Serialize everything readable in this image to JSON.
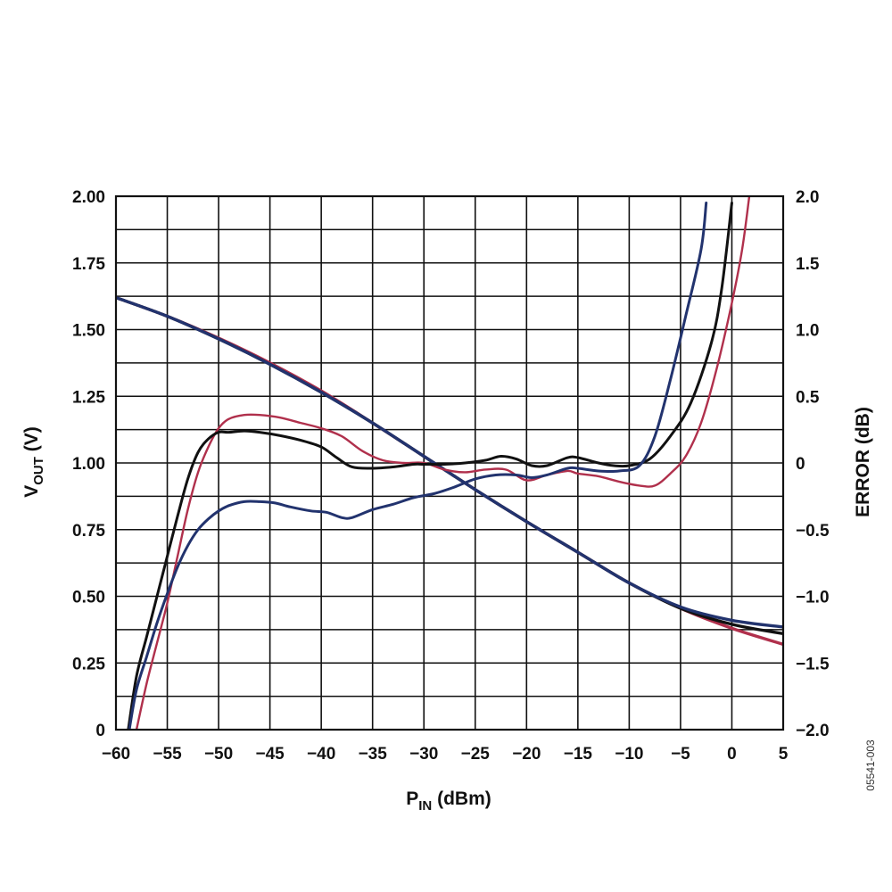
{
  "chart_data": {
    "type": "line",
    "figure_id": "05541-003",
    "xlabel": {
      "main": "P",
      "sub": "IN",
      "unit": " (dBm)"
    },
    "ylabel_left": {
      "main": "V",
      "sub": "OUT",
      "unit": " (V)"
    },
    "ylabel_right": "ERROR (dB)",
    "xlim": [
      -60,
      5
    ],
    "ylim_left": [
      0,
      2.0
    ],
    "ylim_right": [
      -2.0,
      2.0
    ],
    "x_ticks": [
      -60,
      -55,
      -50,
      -45,
      -40,
      -35,
      -30,
      -25,
      -20,
      -15,
      -10,
      -5,
      0,
      5
    ],
    "x_tick_labels": [
      "−60",
      "−55",
      "−50",
      "−45",
      "−40",
      "−35",
      "−30",
      "−25",
      "−20",
      "−15",
      "−10",
      "−5",
      "0",
      "5"
    ],
    "y_left_ticks": [
      0,
      0.25,
      0.5,
      0.75,
      1.0,
      1.25,
      1.5,
      1.75,
      2.0
    ],
    "y_left_tick_labels": [
      "0",
      "0.25",
      "0.50",
      "0.75",
      "1.00",
      "1.25",
      "1.50",
      "1.75",
      "2.00"
    ],
    "y_right_ticks": [
      -2.0,
      -1.5,
      -1.0,
      -0.5,
      0,
      0.5,
      1.0,
      1.5,
      2.0
    ],
    "y_right_tick_labels": [
      "−2.0",
      "−1.5",
      "−1.0",
      "−0.5",
      "0",
      "0.5",
      "1.0",
      "1.5",
      "2.0"
    ],
    "grid": {
      "x_step": 5,
      "y_step_left": 0.125
    },
    "colors": {
      "black": "#111111",
      "red": "#b0304c",
      "blue": "#22336e"
    },
    "series": [
      {
        "axis": "left",
        "color": "black",
        "x": [
          -60,
          -55,
          -50,
          -45,
          -40,
          -35,
          -30,
          -25,
          -20,
          -15,
          -10,
          -5,
          0,
          5
        ],
        "y": [
          1.62,
          1.55,
          1.465,
          1.37,
          1.265,
          1.15,
          1.025,
          0.9,
          0.78,
          0.665,
          0.55,
          0.455,
          0.395,
          0.36
        ]
      },
      {
        "axis": "left",
        "color": "red",
        "x": [
          -60,
          -55,
          -50,
          -45,
          -40,
          -35,
          -30,
          -25,
          -20,
          -15,
          -10,
          -5,
          0,
          5
        ],
        "y": [
          1.62,
          1.55,
          1.468,
          1.375,
          1.27,
          1.15,
          1.025,
          0.9,
          0.78,
          0.665,
          0.55,
          0.455,
          0.38,
          0.32
        ]
      },
      {
        "axis": "left",
        "color": "blue",
        "x": [
          -60,
          -55,
          -50,
          -45,
          -40,
          -35,
          -30,
          -25,
          -20,
          -15,
          -10,
          -5,
          0,
          5
        ],
        "y": [
          1.62,
          1.55,
          1.465,
          1.37,
          1.265,
          1.15,
          1.025,
          0.9,
          0.78,
          0.665,
          0.55,
          0.46,
          0.41,
          0.385
        ]
      },
      {
        "axis": "right",
        "color": "black",
        "x": [
          -58.8,
          -58,
          -57,
          -56,
          -55,
          -54,
          -53,
          -52,
          -51,
          -50,
          -49,
          -47.5,
          -46,
          -44,
          -42,
          -40,
          -38.5,
          -37,
          -35,
          -33,
          -31,
          -30,
          -28,
          -26,
          -24,
          -22.5,
          -21,
          -19.5,
          -18,
          -16,
          -15,
          -13,
          -11.5,
          -10,
          -8,
          -6,
          -4,
          -2,
          -1,
          0
        ],
        "y": [
          -2.0,
          -1.6,
          -1.3,
          -1.0,
          -0.7,
          -0.4,
          -0.12,
          0.08,
          0.18,
          0.23,
          0.23,
          0.24,
          0.23,
          0.205,
          0.17,
          0.12,
          0.04,
          -0.03,
          -0.04,
          -0.03,
          -0.01,
          -0.01,
          -0.01,
          0.0,
          0.02,
          0.05,
          0.03,
          -0.02,
          -0.02,
          0.04,
          0.04,
          0.0,
          -0.02,
          -0.02,
          0.03,
          0.2,
          0.45,
          0.9,
          1.3,
          1.95
        ]
      },
      {
        "axis": "right",
        "color": "red",
        "x": [
          -58,
          -57,
          -56,
          -55,
          -54,
          -53,
          -52,
          -51,
          -50,
          -49,
          -47.5,
          -46,
          -44,
          -42,
          -40,
          -38,
          -36,
          -34,
          -32,
          -30,
          -28,
          -26,
          -24,
          -22,
          -20,
          -18,
          -16,
          -15,
          -13,
          -11,
          -9,
          -7.5,
          -6,
          -4.5,
          -3,
          -1.5,
          0,
          1,
          1.7
        ],
        "y": [
          -2.0,
          -1.65,
          -1.35,
          -1.05,
          -0.7,
          -0.35,
          -0.07,
          0.12,
          0.26,
          0.33,
          0.36,
          0.36,
          0.34,
          0.3,
          0.26,
          0.2,
          0.09,
          0.02,
          0.0,
          0.0,
          -0.05,
          -0.07,
          -0.05,
          -0.05,
          -0.13,
          -0.09,
          -0.06,
          -0.08,
          -0.1,
          -0.14,
          -0.17,
          -0.17,
          -0.08,
          0.05,
          0.3,
          0.7,
          1.2,
          1.6,
          2.0
        ]
      },
      {
        "axis": "right",
        "color": "blue",
        "x": [
          -58.7,
          -58,
          -57,
          -56,
          -55,
          -54,
          -53,
          -52,
          -51,
          -50,
          -49,
          -47.5,
          -46,
          -44.5,
          -43,
          -41,
          -39.5,
          -38,
          -37,
          -35,
          -33,
          -31,
          -29,
          -27,
          -25,
          -23,
          -21,
          -19.5,
          -18,
          -16,
          -15,
          -13,
          -11,
          -9,
          -7.5,
          -6,
          -4.5,
          -3,
          -2.5
        ],
        "y": [
          -2.0,
          -1.7,
          -1.45,
          -1.2,
          -0.98,
          -0.78,
          -0.62,
          -0.5,
          -0.42,
          -0.36,
          -0.32,
          -0.29,
          -0.29,
          -0.3,
          -0.33,
          -0.36,
          -0.37,
          -0.41,
          -0.41,
          -0.35,
          -0.31,
          -0.26,
          -0.23,
          -0.18,
          -0.12,
          -0.09,
          -0.09,
          -0.11,
          -0.09,
          -0.04,
          -0.04,
          -0.06,
          -0.06,
          -0.02,
          0.2,
          0.62,
          1.1,
          1.6,
          1.95
        ]
      }
    ]
  }
}
